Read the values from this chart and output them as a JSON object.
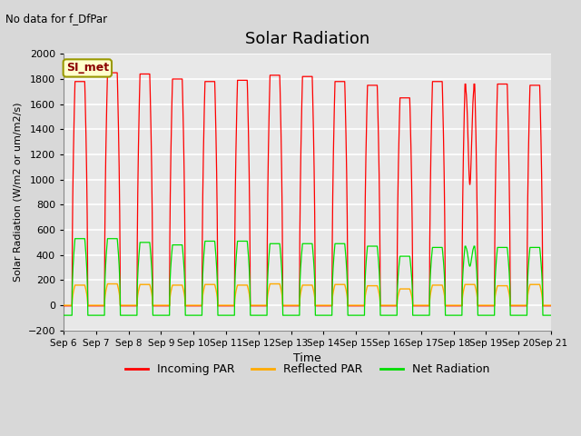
{
  "title": "Solar Radiation",
  "subtitle": "No data for f_DfPar",
  "ylabel": "Solar Radiation (W/m2 or um/m2/s)",
  "xlabel": "Time",
  "legend_label": "SI_met",
  "ylim": [
    -200,
    2000
  ],
  "yticks": [
    -200,
    0,
    200,
    400,
    600,
    800,
    1000,
    1200,
    1400,
    1600,
    1800,
    2000
  ],
  "background_color": "#d8d8d8",
  "plot_bg_color": "#e8e8e8",
  "grid_color": "#ffffff",
  "line_colors": {
    "incoming_PAR": "#ff0000",
    "reflected_PAR": "#ffaa00",
    "net_radiation": "#00dd00"
  },
  "legend_entries": [
    "Incoming PAR",
    "Reflected PAR",
    "Net Radiation"
  ],
  "days": 15,
  "peaks_incoming": [
    1780,
    1850,
    1840,
    1800,
    1780,
    1790,
    1830,
    1820,
    1780,
    1750,
    1650,
    1780,
    1760,
    1760,
    1750
  ],
  "peaks_reflected": [
    160,
    170,
    165,
    160,
    165,
    160,
    170,
    160,
    165,
    155,
    130,
    160,
    165,
    155,
    165
  ],
  "peaks_net": [
    530,
    530,
    500,
    480,
    510,
    510,
    490,
    490,
    490,
    470,
    390,
    460,
    470,
    460,
    460
  ],
  "night_incoming": -5,
  "night_reflected": 0,
  "night_net": -80,
  "x_tick_labels": [
    "Sep 6",
    "Sep 7",
    "Sep 8",
    "Sep 9",
    "Sep 10",
    "Sep 11",
    "Sep 12",
    "Sep 13",
    "Sep 14",
    "Sep 15",
    "Sep 16",
    "Sep 17",
    "Sep 18",
    "Sep 19",
    "Sep 20",
    "Sep 21"
  ]
}
